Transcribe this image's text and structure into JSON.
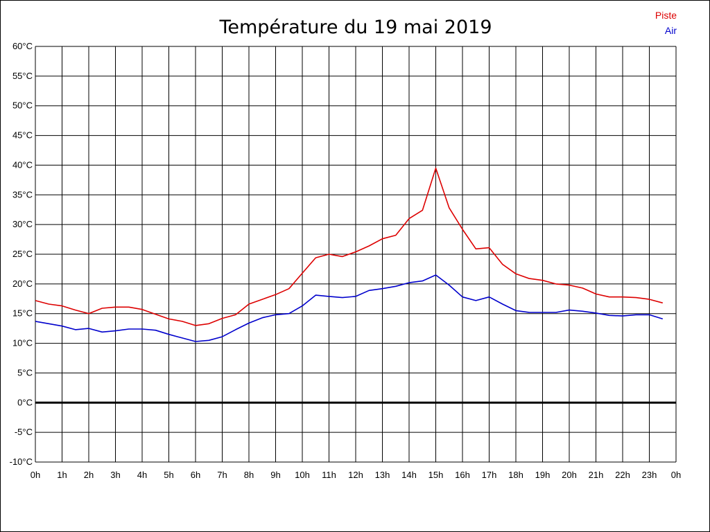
{
  "chart_data": {
    "type": "line",
    "title": "Température du 19 mai 2019",
    "x_ticks": [
      "0h",
      "1h",
      "2h",
      "3h",
      "4h",
      "5h",
      "6h",
      "7h",
      "8h",
      "9h",
      "10h",
      "11h",
      "12h",
      "13h",
      "14h",
      "15h",
      "16h",
      "17h",
      "18h",
      "19h",
      "20h",
      "21h",
      "22h",
      "23h",
      "0h"
    ],
    "y_ticks": [
      "60°C",
      "55°C",
      "50°C",
      "45°C",
      "40°C",
      "35°C",
      "30°C",
      "25°C",
      "20°C",
      "15°C",
      "10°C",
      "5°C",
      "0°C",
      "-5°C",
      "-10°C"
    ],
    "ylim": [
      -10,
      60
    ],
    "xlim": [
      0,
      24
    ],
    "grid": true,
    "zero_line": true,
    "legend_position": "top-right",
    "x": [
      0,
      0.5,
      1,
      1.5,
      2,
      2.5,
      3,
      3.5,
      4,
      4.5,
      5,
      5.5,
      6,
      6.5,
      7,
      7.5,
      8,
      8.5,
      9,
      9.5,
      10,
      10.5,
      11,
      11.5,
      12,
      12.5,
      13,
      13.5,
      14,
      14.5,
      15,
      15.5,
      16,
      16.5,
      17,
      17.5,
      18,
      18.5,
      19,
      19.5,
      20,
      20.5,
      21,
      21.5,
      22,
      22.5,
      23,
      23.5
    ],
    "series": [
      {
        "name": "Piste",
        "color": "#dd0000",
        "values": [
          17.2,
          16.6,
          16.3,
          15.6,
          15.0,
          15.9,
          16.1,
          16.1,
          15.7,
          14.9,
          14.1,
          13.7,
          13.0,
          13.3,
          14.2,
          14.8,
          16.6,
          17.4,
          18.2,
          19.2,
          21.8,
          24.4,
          25.0,
          24.6,
          25.4,
          26.4,
          27.6,
          28.2,
          31.0,
          32.4,
          39.5,
          32.8,
          29.2,
          25.9,
          26.1,
          23.3,
          21.7,
          20.9,
          20.6,
          20.0,
          19.8,
          19.3,
          18.3,
          17.8,
          17.8,
          17.7,
          17.4,
          16.8
        ]
      },
      {
        "name": "Air",
        "color": "#0000cc",
        "values": [
          13.7,
          13.3,
          12.9,
          12.3,
          12.5,
          11.9,
          12.1,
          12.4,
          12.4,
          12.2,
          11.5,
          10.9,
          10.3,
          10.5,
          11.1,
          12.3,
          13.4,
          14.3,
          14.8,
          15.0,
          16.3,
          18.1,
          17.9,
          17.7,
          17.9,
          18.9,
          19.2,
          19.6,
          20.2,
          20.5,
          21.5,
          19.8,
          17.8,
          17.2,
          17.8,
          16.6,
          15.5,
          15.2,
          15.2,
          15.2,
          15.6,
          15.4,
          15.1,
          14.7,
          14.6,
          14.8,
          14.8,
          14.1
        ]
      }
    ]
  }
}
